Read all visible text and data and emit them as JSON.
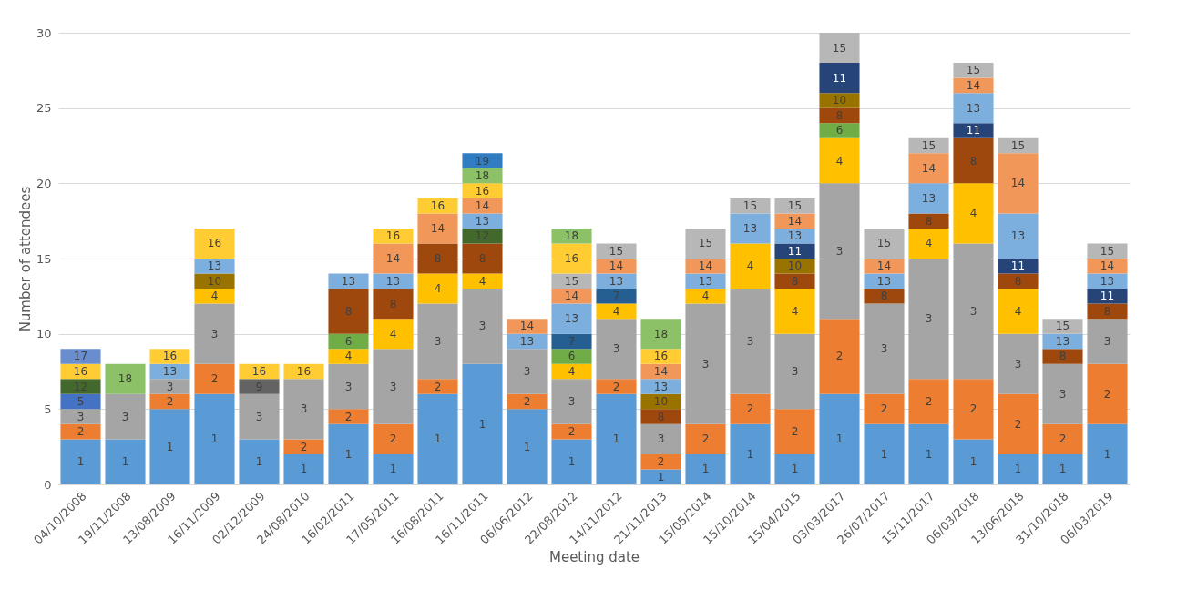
{
  "chart_data": {
    "type": "bar",
    "stacked": true,
    "xlabel": "Meeting date",
    "ylabel": "Number of attendees",
    "categories": [
      "04/10/2008",
      "19/11/2008",
      "13/08/2009",
      "16/11/2009",
      "02/12/2009",
      "24/08/2010",
      "16/02/2011",
      "17/05/2011",
      "16/08/2011",
      "16/11/2011",
      "06/06/2012",
      "22/08/2012",
      "14/11/2012",
      "21/11/2013",
      "15/05/2014",
      "15/10/2014",
      "15/04/2015",
      "03/03/2017",
      "26/07/2017",
      "15/11/2017",
      "06/03/2018",
      "13/06/2018",
      "31/10/2018",
      "06/03/2019"
    ],
    "ylim": [
      0,
      30
    ],
    "yticks": [
      0,
      5,
      10,
      15,
      20,
      25,
      30
    ],
    "grid": "y",
    "legend": false,
    "series": [
      {
        "name": "1",
        "color": "#5b9bd5",
        "values": [
          3,
          3,
          5,
          6,
          3,
          2,
          4,
          2,
          6,
          8,
          5,
          3,
          6,
          1,
          2,
          4,
          2,
          6,
          4,
          4,
          3,
          2,
          2,
          4
        ]
      },
      {
        "name": "2",
        "color": "#ed7d31",
        "values": [
          1,
          null,
          1,
          2,
          null,
          1,
          1,
          2,
          1,
          null,
          1,
          1,
          1,
          1,
          2,
          2,
          3,
          5,
          2,
          3,
          4,
          4,
          2,
          4
        ]
      },
      {
        "name": "3",
        "color": "#a5a5a5",
        "values": [
          1,
          3,
          1,
          4,
          3,
          4,
          3,
          5,
          5,
          5,
          3,
          3,
          4,
          2,
          8,
          7,
          5,
          9,
          6,
          8,
          9,
          4,
          4,
          3
        ]
      },
      {
        "name": "4",
        "color": "#ffc000",
        "values": [
          null,
          null,
          null,
          1,
          null,
          null,
          1,
          2,
          2,
          1,
          null,
          1,
          1,
          null,
          1,
          3,
          3,
          3,
          null,
          2,
          4,
          3,
          null,
          null
        ]
      },
      {
        "name": "5",
        "color": "#4472c4",
        "values": [
          1,
          null,
          null,
          null,
          null,
          null,
          null,
          null,
          null,
          null,
          null,
          null,
          null,
          null,
          null,
          null,
          null,
          null,
          null,
          null,
          null,
          null,
          null,
          null
        ]
      },
      {
        "name": "6",
        "color": "#70ad47",
        "values": [
          null,
          null,
          null,
          null,
          null,
          null,
          1,
          null,
          null,
          null,
          null,
          1,
          null,
          null,
          null,
          null,
          null,
          1,
          null,
          null,
          null,
          null,
          null,
          null
        ]
      },
      {
        "name": "7",
        "color": "#255e91",
        "values": [
          null,
          null,
          null,
          null,
          null,
          null,
          null,
          null,
          null,
          null,
          null,
          1,
          1,
          null,
          null,
          null,
          null,
          null,
          null,
          null,
          null,
          null,
          null,
          null
        ]
      },
      {
        "name": "8",
        "color": "#9e480e",
        "values": [
          null,
          null,
          null,
          null,
          null,
          null,
          3,
          2,
          2,
          2,
          null,
          null,
          null,
          1,
          null,
          null,
          1,
          1,
          1,
          1,
          3,
          1,
          1,
          1
        ]
      },
      {
        "name": "9",
        "color": "#636363",
        "values": [
          null,
          null,
          null,
          null,
          1,
          null,
          null,
          null,
          null,
          null,
          null,
          null,
          null,
          null,
          null,
          null,
          null,
          null,
          null,
          null,
          null,
          null,
          null,
          null
        ]
      },
      {
        "name": "10",
        "color": "#997300",
        "values": [
          null,
          null,
          null,
          1,
          null,
          null,
          null,
          null,
          null,
          null,
          null,
          null,
          null,
          1,
          null,
          null,
          1,
          1,
          null,
          null,
          null,
          null,
          null,
          null
        ]
      },
      {
        "name": "11",
        "color": "#264478",
        "values": [
          null,
          null,
          null,
          null,
          null,
          null,
          null,
          null,
          null,
          null,
          null,
          null,
          null,
          null,
          null,
          null,
          1,
          2,
          null,
          null,
          1,
          1,
          null,
          1
        ]
      },
      {
        "name": "12",
        "color": "#43682b",
        "values": [
          1,
          null,
          null,
          null,
          null,
          null,
          null,
          null,
          null,
          1,
          null,
          null,
          null,
          null,
          null,
          null,
          null,
          null,
          null,
          null,
          null,
          null,
          null,
          null
        ]
      },
      {
        "name": "13",
        "color": "#7cafdd",
        "values": [
          null,
          null,
          1,
          1,
          null,
          null,
          1,
          1,
          null,
          1,
          1,
          2,
          1,
          1,
          1,
          2,
          1,
          null,
          1,
          2,
          2,
          3,
          1,
          1
        ]
      },
      {
        "name": "14",
        "color": "#f1975a",
        "values": [
          null,
          null,
          null,
          null,
          null,
          null,
          null,
          2,
          2,
          1,
          1,
          1,
          1,
          1,
          1,
          null,
          1,
          null,
          1,
          2,
          1,
          4,
          null,
          1
        ]
      },
      {
        "name": "15",
        "color": "#b7b7b7",
        "values": [
          null,
          null,
          null,
          null,
          null,
          null,
          null,
          null,
          null,
          null,
          null,
          1,
          1,
          null,
          2,
          1,
          1,
          2,
          2,
          1,
          1,
          1,
          1,
          1
        ]
      },
      {
        "name": "16",
        "color": "#ffcd33",
        "values": [
          1,
          null,
          1,
          2,
          1,
          1,
          null,
          1,
          1,
          1,
          null,
          2,
          null,
          1,
          null,
          null,
          null,
          null,
          null,
          null,
          null,
          null,
          null,
          null
        ]
      },
      {
        "name": "17",
        "color": "#698ed0",
        "values": [
          1,
          null,
          null,
          null,
          null,
          null,
          null,
          null,
          null,
          null,
          null,
          null,
          null,
          null,
          null,
          null,
          null,
          null,
          null,
          null,
          null,
          null,
          null,
          null
        ]
      },
      {
        "name": "18",
        "color": "#8cc168",
        "values": [
          null,
          2,
          null,
          null,
          null,
          null,
          null,
          null,
          null,
          1,
          null,
          1,
          null,
          2,
          null,
          null,
          null,
          null,
          null,
          null,
          null,
          null,
          null,
          null
        ]
      },
      {
        "name": "19",
        "color": "#327dc2",
        "values": [
          null,
          null,
          null,
          null,
          null,
          null,
          null,
          null,
          null,
          1,
          null,
          null,
          null,
          null,
          null,
          null,
          null,
          null,
          null,
          null,
          null,
          null,
          null,
          null
        ]
      }
    ]
  }
}
